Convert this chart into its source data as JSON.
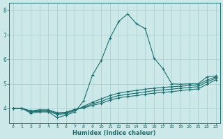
{
  "xlabel": "Humidex (Indice chaleur)",
  "xlim": [
    -0.5,
    23.5
  ],
  "ylim": [
    3.4,
    8.3
  ],
  "yticks": [
    4,
    5,
    6,
    7,
    8
  ],
  "xticks": [
    0,
    1,
    2,
    3,
    4,
    5,
    6,
    7,
    8,
    9,
    10,
    11,
    12,
    13,
    14,
    15,
    16,
    17,
    18,
    19,
    20,
    21,
    22,
    23
  ],
  "bg_color": "#cce8e8",
  "line_color": "#1a7070",
  "grid_color": "#a8cccc",
  "lines": [
    {
      "x": [
        0,
        1,
        2,
        3,
        4,
        5,
        6,
        7,
        8,
        9,
        10,
        11,
        12,
        13,
        14,
        15,
        16,
        17,
        18,
        19,
        20,
        21,
        22,
        23
      ],
      "y": [
        4.0,
        4.0,
        3.8,
        3.85,
        3.85,
        3.62,
        3.72,
        3.85,
        4.3,
        5.35,
        5.95,
        6.87,
        7.55,
        7.85,
        7.45,
        7.25,
        6.05,
        5.62,
        5.0,
        4.98,
        5.0,
        5.0,
        5.28,
        5.32
      ]
    },
    {
      "x": [
        0,
        1,
        2,
        3,
        4,
        5,
        6,
        7,
        8,
        9,
        10,
        11,
        12,
        13,
        14,
        15,
        16,
        17,
        18,
        19,
        20,
        21,
        22,
        23
      ],
      "y": [
        4.0,
        4.0,
        3.85,
        3.88,
        3.88,
        3.75,
        3.78,
        3.9,
        4.08,
        4.25,
        4.38,
        4.52,
        4.62,
        4.68,
        4.73,
        4.78,
        4.82,
        4.85,
        4.88,
        4.9,
        4.93,
        4.96,
        5.15,
        5.28
      ]
    },
    {
      "x": [
        0,
        1,
        2,
        3,
        4,
        5,
        6,
        7,
        8,
        9,
        10,
        11,
        12,
        13,
        14,
        15,
        16,
        17,
        18,
        19,
        20,
        21,
        22,
        23
      ],
      "y": [
        4.0,
        4.0,
        3.87,
        3.91,
        3.91,
        3.78,
        3.81,
        3.93,
        4.04,
        4.18,
        4.28,
        4.42,
        4.52,
        4.57,
        4.62,
        4.67,
        4.72,
        4.75,
        4.78,
        4.82,
        4.85,
        4.88,
        5.08,
        5.22
      ]
    },
    {
      "x": [
        0,
        1,
        2,
        3,
        4,
        5,
        6,
        7,
        8,
        9,
        10,
        11,
        12,
        13,
        14,
        15,
        16,
        17,
        18,
        19,
        20,
        21,
        22,
        23
      ],
      "y": [
        4.0,
        4.0,
        3.9,
        3.94,
        3.94,
        3.82,
        3.84,
        3.96,
        4.01,
        4.12,
        4.2,
        4.33,
        4.43,
        4.48,
        4.52,
        4.57,
        4.62,
        4.65,
        4.68,
        4.72,
        4.76,
        4.79,
        4.98,
        5.16
      ]
    }
  ],
  "marker": "+",
  "markersize": 3.5,
  "linewidth": 0.8
}
